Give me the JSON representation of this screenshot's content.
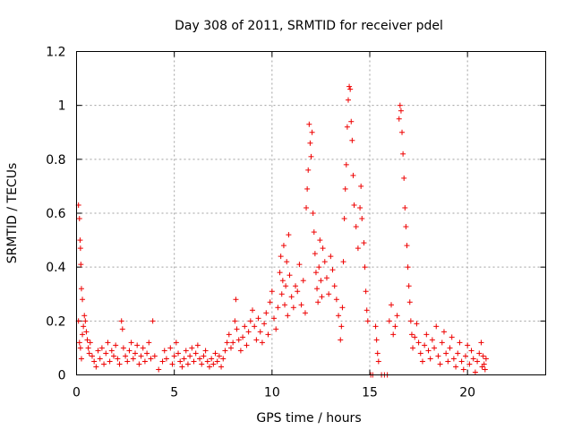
{
  "chart_data": {
    "type": "scatter",
    "title": "Day 308 of 2011, SRMTID for receiver pdel",
    "xlabel": "GPS time / hours",
    "ylabel": "SRMTID / TECUs",
    "xlim": [
      0,
      24
    ],
    "ylim": [
      0,
      1.2
    ],
    "xticks": [
      0,
      5,
      10,
      15,
      20
    ],
    "yticks": [
      0,
      0.2,
      0.4,
      0.6,
      0.8,
      1,
      1.2
    ],
    "xtick_labels": [
      "0",
      "5",
      "10",
      "15",
      "20"
    ],
    "ytick_labels": [
      "0",
      "0.2",
      "0.4",
      "0.6",
      "0.8",
      "1",
      "1.2"
    ],
    "grid": true,
    "marker": "+",
    "color": "#ee0000",
    "series": [
      {
        "name": "SRMTID",
        "points": [
          [
            0.1,
            0.63
          ],
          [
            0.15,
            0.58
          ],
          [
            0.18,
            0.5
          ],
          [
            0.2,
            0.47
          ],
          [
            0.22,
            0.41
          ],
          [
            0.25,
            0.32
          ],
          [
            0.3,
            0.28
          ],
          [
            0.1,
            0.2
          ],
          [
            0.15,
            0.12
          ],
          [
            0.2,
            0.1
          ],
          [
            0.25,
            0.06
          ],
          [
            0.3,
            0.15
          ],
          [
            0.35,
            0.18
          ],
          [
            0.4,
            0.22
          ],
          [
            0.45,
            0.2
          ],
          [
            0.5,
            0.16
          ],
          [
            0.55,
            0.13
          ],
          [
            0.6,
            0.1
          ],
          [
            0.65,
            0.08
          ],
          [
            0.7,
            0.12
          ],
          [
            0.8,
            0.07
          ],
          [
            0.9,
            0.05
          ],
          [
            1.0,
            0.03
          ],
          [
            1.1,
            0.09
          ],
          [
            1.2,
            0.06
          ],
          [
            1.3,
            0.1
          ],
          [
            1.4,
            0.04
          ],
          [
            1.5,
            0.08
          ],
          [
            1.6,
            0.12
          ],
          [
            1.7,
            0.05
          ],
          [
            1.8,
            0.09
          ],
          [
            1.9,
            0.07
          ],
          [
            2.0,
            0.11
          ],
          [
            2.1,
            0.06
          ],
          [
            2.2,
            0.04
          ],
          [
            2.3,
            0.2
          ],
          [
            2.35,
            0.17
          ],
          [
            2.4,
            0.1
          ],
          [
            2.5,
            0.07
          ],
          [
            2.6,
            0.05
          ],
          [
            2.7,
            0.09
          ],
          [
            2.8,
            0.12
          ],
          [
            2.9,
            0.06
          ],
          [
            3.0,
            0.08
          ],
          [
            3.1,
            0.11
          ],
          [
            3.2,
            0.04
          ],
          [
            3.3,
            0.07
          ],
          [
            3.4,
            0.1
          ],
          [
            3.5,
            0.05
          ],
          [
            3.6,
            0.08
          ],
          [
            3.7,
            0.12
          ],
          [
            3.8,
            0.06
          ],
          [
            3.9,
            0.2
          ],
          [
            4.0,
            0.07
          ],
          [
            4.2,
            0.02
          ],
          [
            4.4,
            0.05
          ],
          [
            4.5,
            0.09
          ],
          [
            4.6,
            0.06
          ],
          [
            4.8,
            0.1
          ],
          [
            4.9,
            0.04
          ],
          [
            5.0,
            0.07
          ],
          [
            5.1,
            0.12
          ],
          [
            5.2,
            0.08
          ],
          [
            5.3,
            0.05
          ],
          [
            5.4,
            0.03
          ],
          [
            5.5,
            0.06
          ],
          [
            5.6,
            0.09
          ],
          [
            5.7,
            0.04
          ],
          [
            5.8,
            0.07
          ],
          [
            5.9,
            0.1
          ],
          [
            6.0,
            0.05
          ],
          [
            6.1,
            0.08
          ],
          [
            6.2,
            0.11
          ],
          [
            6.3,
            0.06
          ],
          [
            6.4,
            0.04
          ],
          [
            6.5,
            0.07
          ],
          [
            6.6,
            0.09
          ],
          [
            6.7,
            0.05
          ],
          [
            6.8,
            0.03
          ],
          [
            6.9,
            0.06
          ],
          [
            7.0,
            0.04
          ],
          [
            7.1,
            0.08
          ],
          [
            7.2,
            0.05
          ],
          [
            7.3,
            0.07
          ],
          [
            7.4,
            0.03
          ],
          [
            7.5,
            0.06
          ],
          [
            7.6,
            0.09
          ],
          [
            7.7,
            0.12
          ],
          [
            7.8,
            0.15
          ],
          [
            7.9,
            0.1
          ],
          [
            8.0,
            0.12
          ],
          [
            8.1,
            0.2
          ],
          [
            8.15,
            0.28
          ],
          [
            8.2,
            0.17
          ],
          [
            8.3,
            0.13
          ],
          [
            8.4,
            0.09
          ],
          [
            8.5,
            0.14
          ],
          [
            8.6,
            0.18
          ],
          [
            8.7,
            0.11
          ],
          [
            8.8,
            0.16
          ],
          [
            8.9,
            0.2
          ],
          [
            9.0,
            0.24
          ],
          [
            9.1,
            0.18
          ],
          [
            9.2,
            0.13
          ],
          [
            9.3,
            0.21
          ],
          [
            9.4,
            0.16
          ],
          [
            9.5,
            0.12
          ],
          [
            9.6,
            0.19
          ],
          [
            9.7,
            0.23
          ],
          [
            9.8,
            0.15
          ],
          [
            9.9,
            0.27
          ],
          [
            10.0,
            0.31
          ],
          [
            10.1,
            0.21
          ],
          [
            10.2,
            0.17
          ],
          [
            10.3,
            0.25
          ],
          [
            10.4,
            0.38
          ],
          [
            10.45,
            0.44
          ],
          [
            10.5,
            0.3
          ],
          [
            10.55,
            0.35
          ],
          [
            10.6,
            0.48
          ],
          [
            10.65,
            0.26
          ],
          [
            10.7,
            0.33
          ],
          [
            10.75,
            0.42
          ],
          [
            10.8,
            0.22
          ],
          [
            10.85,
            0.52
          ],
          [
            10.9,
            0.37
          ],
          [
            11.0,
            0.29
          ],
          [
            11.1,
            0.25
          ],
          [
            11.2,
            0.33
          ],
          [
            11.3,
            0.31
          ],
          [
            11.4,
            0.41
          ],
          [
            11.5,
            0.26
          ],
          [
            11.6,
            0.35
          ],
          [
            11.7,
            0.23
          ],
          [
            11.75,
            0.62
          ],
          [
            11.8,
            0.69
          ],
          [
            11.85,
            0.76
          ],
          [
            11.9,
            0.93
          ],
          [
            11.95,
            0.86
          ],
          [
            12.0,
            0.81
          ],
          [
            12.05,
            0.9
          ],
          [
            12.1,
            0.6
          ],
          [
            12.15,
            0.53
          ],
          [
            12.2,
            0.45
          ],
          [
            12.25,
            0.38
          ],
          [
            12.3,
            0.32
          ],
          [
            12.35,
            0.27
          ],
          [
            12.4,
            0.4
          ],
          [
            12.45,
            0.5
          ],
          [
            12.5,
            0.35
          ],
          [
            12.55,
            0.29
          ],
          [
            12.6,
            0.47
          ],
          [
            12.7,
            0.42
          ],
          [
            12.8,
            0.36
          ],
          [
            12.9,
            0.3
          ],
          [
            13.0,
            0.44
          ],
          [
            13.1,
            0.39
          ],
          [
            13.2,
            0.33
          ],
          [
            13.3,
            0.28
          ],
          [
            13.4,
            0.22
          ],
          [
            13.5,
            0.13
          ],
          [
            13.55,
            0.18
          ],
          [
            13.6,
            0.25
          ],
          [
            13.65,
            0.42
          ],
          [
            13.7,
            0.58
          ],
          [
            13.75,
            0.69
          ],
          [
            13.8,
            0.78
          ],
          [
            13.85,
            0.92
          ],
          [
            13.9,
            1.02
          ],
          [
            13.95,
            1.07
          ],
          [
            14.0,
            1.06
          ],
          [
            14.05,
            0.94
          ],
          [
            14.1,
            0.87
          ],
          [
            14.15,
            0.74
          ],
          [
            14.2,
            0.63
          ],
          [
            14.3,
            0.55
          ],
          [
            14.4,
            0.47
          ],
          [
            14.5,
            0.62
          ],
          [
            14.55,
            0.7
          ],
          [
            14.6,
            0.58
          ],
          [
            14.7,
            0.49
          ],
          [
            14.75,
            0.4
          ],
          [
            14.8,
            0.31
          ],
          [
            14.85,
            0.24
          ],
          [
            14.9,
            0.2
          ],
          [
            15.05,
            0.0
          ],
          [
            15.15,
            0.0
          ],
          [
            15.3,
            0.18
          ],
          [
            15.35,
            0.13
          ],
          [
            15.4,
            0.08
          ],
          [
            15.45,
            0.05
          ],
          [
            15.6,
            0.0
          ],
          [
            15.75,
            0.0
          ],
          [
            15.9,
            0.0
          ],
          [
            16.0,
            0.2
          ],
          [
            16.1,
            0.26
          ],
          [
            16.2,
            0.15
          ],
          [
            16.3,
            0.18
          ],
          [
            16.4,
            0.22
          ],
          [
            16.5,
            0.95
          ],
          [
            16.55,
            1.0
          ],
          [
            16.6,
            0.98
          ],
          [
            16.65,
            0.9
          ],
          [
            16.7,
            0.82
          ],
          [
            16.75,
            0.73
          ],
          [
            16.8,
            0.62
          ],
          [
            16.85,
            0.55
          ],
          [
            16.9,
            0.48
          ],
          [
            16.95,
            0.4
          ],
          [
            17.0,
            0.33
          ],
          [
            17.05,
            0.27
          ],
          [
            17.1,
            0.2
          ],
          [
            17.15,
            0.15
          ],
          [
            17.2,
            0.1
          ],
          [
            17.3,
            0.14
          ],
          [
            17.4,
            0.19
          ],
          [
            17.5,
            0.12
          ],
          [
            17.6,
            0.08
          ],
          [
            17.7,
            0.05
          ],
          [
            17.8,
            0.11
          ],
          [
            17.9,
            0.15
          ],
          [
            18.0,
            0.09
          ],
          [
            18.1,
            0.06
          ],
          [
            18.2,
            0.13
          ],
          [
            18.3,
            0.1
          ],
          [
            18.4,
            0.18
          ],
          [
            18.5,
            0.07
          ],
          [
            18.6,
            0.04
          ],
          [
            18.7,
            0.12
          ],
          [
            18.8,
            0.16
          ],
          [
            18.9,
            0.08
          ],
          [
            19.0,
            0.05
          ],
          [
            19.1,
            0.1
          ],
          [
            19.2,
            0.14
          ],
          [
            19.3,
            0.06
          ],
          [
            19.4,
            0.03
          ],
          [
            19.5,
            0.08
          ],
          [
            19.6,
            0.12
          ],
          [
            19.7,
            0.05
          ],
          [
            19.8,
            0.02
          ],
          [
            19.9,
            0.07
          ],
          [
            20.0,
            0.11
          ],
          [
            20.1,
            0.04
          ],
          [
            20.2,
            0.09
          ],
          [
            20.3,
            0.06
          ],
          [
            20.4,
            0.01
          ],
          [
            20.5,
            0.05
          ],
          [
            20.6,
            0.08
          ],
          [
            20.7,
            0.12
          ],
          [
            20.75,
            0.03
          ],
          [
            20.8,
            0.07
          ],
          [
            20.85,
            0.04
          ],
          [
            20.9,
            0.02
          ],
          [
            20.95,
            0.06
          ]
        ]
      }
    ]
  }
}
